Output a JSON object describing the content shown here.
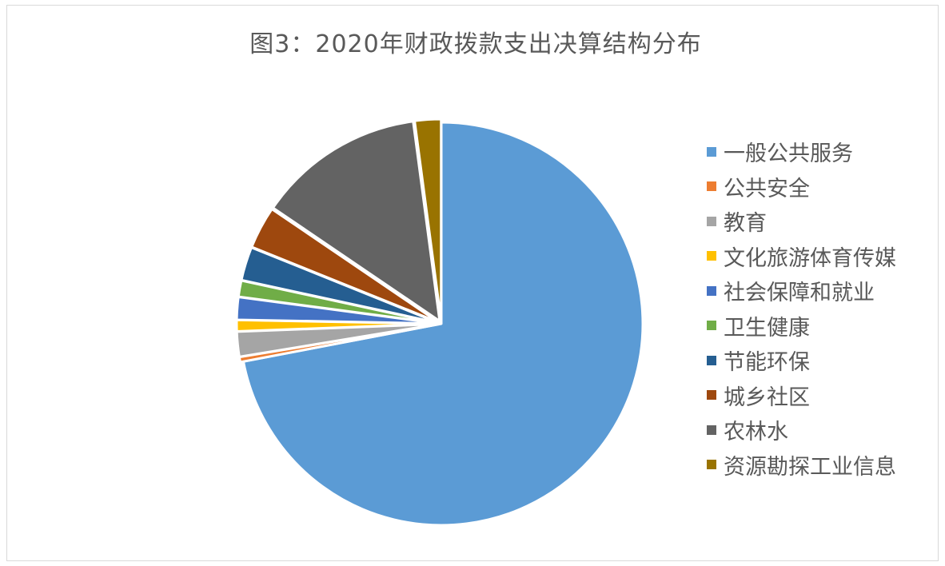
{
  "chart_data": {
    "type": "pie",
    "title": "图3：2020年财政拨款支出决算结构分布",
    "categories": [
      "一般公共服务",
      "公共安全",
      "教育",
      "文化旅游体育传媒",
      "社会保障和就业",
      "卫生健康",
      "节能环保",
      "城乡社区",
      "农林水",
      "资源勘探工业信息"
    ],
    "values": [
      72.0,
      0.4,
      2.0,
      0.9,
      1.8,
      1.3,
      2.7,
      3.4,
      13.4,
      2.1
    ],
    "unit": "%",
    "colors": [
      "#5b9bd5",
      "#ed7d31",
      "#a5a5a5",
      "#ffc000",
      "#4472c4",
      "#70ad47",
      "#255e91",
      "#9e480e",
      "#636363",
      "#997300"
    ],
    "legend_position": "right",
    "start_direction": "top",
    "direction": "clockwise"
  }
}
